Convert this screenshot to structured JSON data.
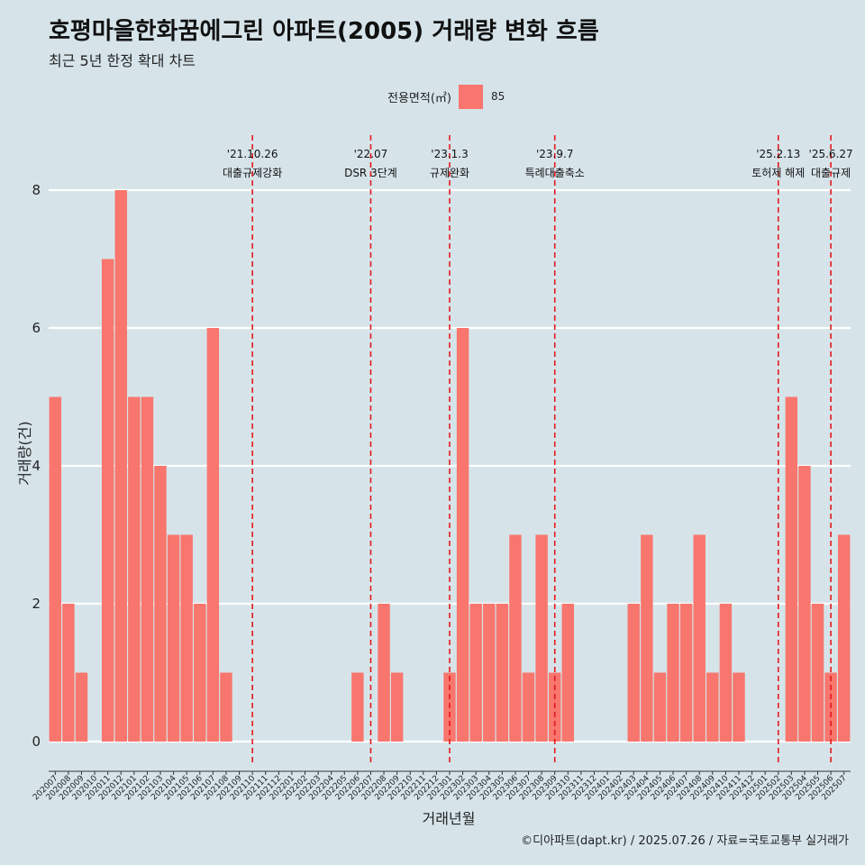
{
  "title": "호평마을한화꿈에그린 아파트(2005) 거래량 변화 흐름",
  "subtitle": "최근 5년 한정 확대 차트",
  "legend": {
    "title": "전용면적(㎡)",
    "label": "85"
  },
  "caption": "©디아파트(dapt.kr) / 2025.07.26 / 자료=국토교통부 실거래가",
  "colors": {
    "bar": "#f8766d",
    "background": "#d6e4ea",
    "event_line": "#e41a1c",
    "grid": "#ffffff"
  },
  "chart_data": {
    "type": "bar",
    "xlabel": "거래년월",
    "ylabel": "거래량(건)",
    "ylim": [
      0,
      8
    ],
    "yticks": [
      0,
      2,
      4,
      6,
      8
    ],
    "grid": true,
    "legend_position": "top",
    "categories": [
      "202007",
      "202008",
      "202009",
      "202010",
      "202011",
      "202012",
      "202101",
      "202102",
      "202103",
      "202104",
      "202105",
      "202106",
      "202107",
      "202108",
      "202109",
      "202110",
      "202111",
      "202112",
      "202201",
      "202202",
      "202203",
      "202204",
      "202205",
      "202206",
      "202207",
      "202208",
      "202209",
      "202210",
      "202211",
      "202212",
      "202301",
      "202302",
      "202303",
      "202304",
      "202305",
      "202306",
      "202307",
      "202308",
      "202309",
      "202310",
      "202311",
      "202312",
      "202401",
      "202402",
      "202403",
      "202404",
      "202405",
      "202406",
      "202407",
      "202408",
      "202409",
      "202410",
      "202411",
      "202412",
      "202501",
      "202502",
      "202503",
      "202504",
      "202505",
      "202506",
      "202507"
    ],
    "series": [
      {
        "name": "85",
        "values": [
          5,
          2,
          1,
          0,
          7,
          8,
          5,
          5,
          4,
          3,
          3,
          2,
          6,
          1,
          0,
          0,
          0,
          0,
          0,
          0,
          0,
          0,
          0,
          1,
          0,
          2,
          1,
          0,
          0,
          0,
          1,
          6,
          2,
          2,
          2,
          3,
          1,
          3,
          1,
          2,
          0,
          0,
          0,
          0,
          2,
          3,
          1,
          2,
          2,
          3,
          1,
          2,
          1,
          0,
          0,
          0,
          5,
          4,
          2,
          1,
          3
        ]
      }
    ],
    "events": [
      {
        "date": "'21.10.26",
        "label": "대출규제강화",
        "x": 15.5
      },
      {
        "date": "'22.07",
        "label": "DSR 3단계",
        "x": 24.5
      },
      {
        "date": "'23.1.3",
        "label": "규제완화",
        "x": 30.5
      },
      {
        "date": "'23.9.7",
        "label": "특례대출축소",
        "x": 38.5
      },
      {
        "date": "'25.2.13",
        "label": "토허제 해제",
        "x": 55.5
      },
      {
        "date": "'25.6.27",
        "label": "대출규제",
        "x": 59.5
      }
    ]
  }
}
